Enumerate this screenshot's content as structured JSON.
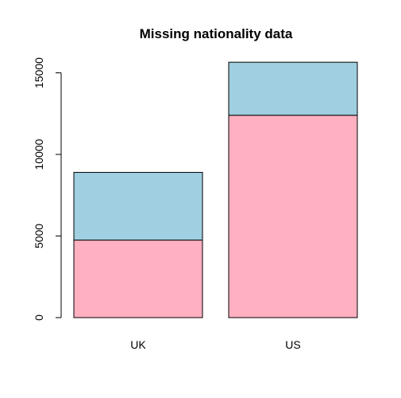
{
  "chart_data": {
    "type": "bar",
    "stacked": true,
    "title": "Missing nationality data",
    "xlabel": "",
    "ylabel": "",
    "categories": [
      "UK",
      "US"
    ],
    "series": [
      {
        "values": [
          4750,
          12400
        ],
        "color": "#FFB0C1"
      },
      {
        "values": [
          4150,
          3250
        ],
        "color": "#9FCFE1"
      }
    ],
    "yticks": [
      0,
      5000,
      10000,
      15000
    ],
    "ytick_labels": [
      "0",
      "5000",
      "10000",
      "15000"
    ],
    "ylim": [
      0,
      15600
    ],
    "grid": false,
    "legend": "none"
  }
}
